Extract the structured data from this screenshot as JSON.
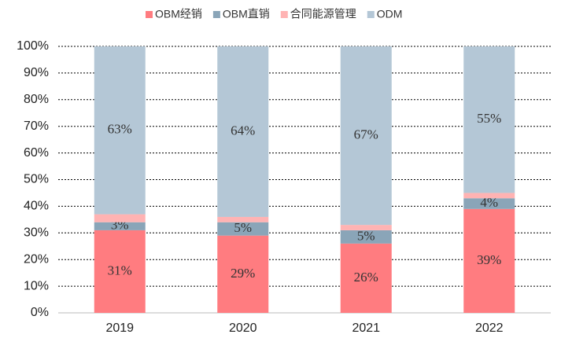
{
  "chart_data": {
    "type": "stacked_bar",
    "categories": [
      "2019",
      "2020",
      "2021",
      "2022"
    ],
    "series": [
      {
        "name": "OBM经销",
        "color": "#ff7c80",
        "values": [
          31,
          29,
          26,
          39
        ],
        "value_labels": [
          "31%",
          "29%",
          "26%",
          "39%"
        ]
      },
      {
        "name": "OBM直销",
        "color": "#8aa5b8",
        "values": [
          3,
          5,
          5,
          4
        ],
        "value_labels": [
          "3%",
          "5%",
          "5%",
          "4%"
        ]
      },
      {
        "name": "合同能源管理",
        "color": "#ffb3b3",
        "values": [
          3,
          2,
          2,
          2
        ]
      },
      {
        "name": "ODM",
        "color": "#b4c7d6",
        "values": [
          63,
          64,
          67,
          55
        ],
        "value_labels": [
          "63%",
          "64%",
          "67%",
          "55%"
        ]
      }
    ],
    "ylim": [
      0,
      100
    ],
    "yticks": [
      {
        "value": 0,
        "label": "0%"
      },
      {
        "value": 10,
        "label": "10%"
      },
      {
        "value": 20,
        "label": "20%"
      },
      {
        "value": 30,
        "label": "30%"
      },
      {
        "value": 40,
        "label": "40%"
      },
      {
        "value": 50,
        "label": "50%"
      },
      {
        "value": 60,
        "label": "60%"
      },
      {
        "value": 70,
        "label": "70%"
      },
      {
        "value": 80,
        "label": "80%"
      },
      {
        "value": 90,
        "label": "90%"
      },
      {
        "value": 100,
        "label": "100%"
      }
    ],
    "grid": true,
    "legend": "top"
  }
}
